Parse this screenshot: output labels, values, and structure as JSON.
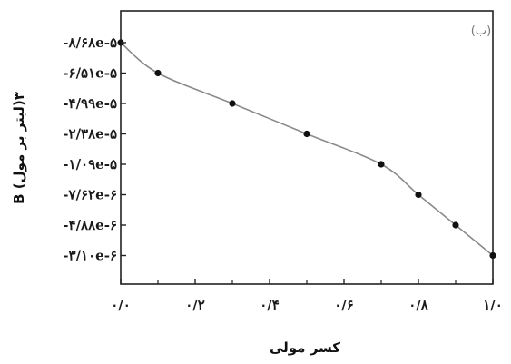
{
  "chart_data": {
    "type": "line",
    "panel_label": "(ب)",
    "xlabel": "کسر مولی",
    "ylabel": "B (لیتر بر مول)۳",
    "x_ticks": [
      0.0,
      0.2,
      0.4,
      0.6,
      0.8,
      1.0
    ],
    "x_tick_labels": [
      "۰/۰",
      "۰/۲",
      "۰/۴",
      "۰/۶",
      "۰/۸",
      "۱/۰"
    ],
    "y_tick_labels": [
      "-۸/۶۸e-۵",
      "-۶/۵۱e-۵",
      "-۴/۹۹e-۵",
      "-۲/۳۸e-۵",
      "-۱/۰۹e-۵",
      "-۷/۶۲e-۶",
      "-۴/۸۸e-۶",
      "-۳/۱۰e-۶"
    ],
    "xlim": [
      0.0,
      1.0
    ],
    "grid": false,
    "series": [
      {
        "x": [
          0.0,
          0.1,
          0.3,
          0.5,
          0.7,
          0.8,
          0.9,
          1.0
        ],
        "tick_index": [
          0,
          1,
          2,
          3,
          4,
          5,
          6,
          7
        ]
      }
    ],
    "line_color": "#8a8a8a",
    "marker_color": "#111111"
  }
}
